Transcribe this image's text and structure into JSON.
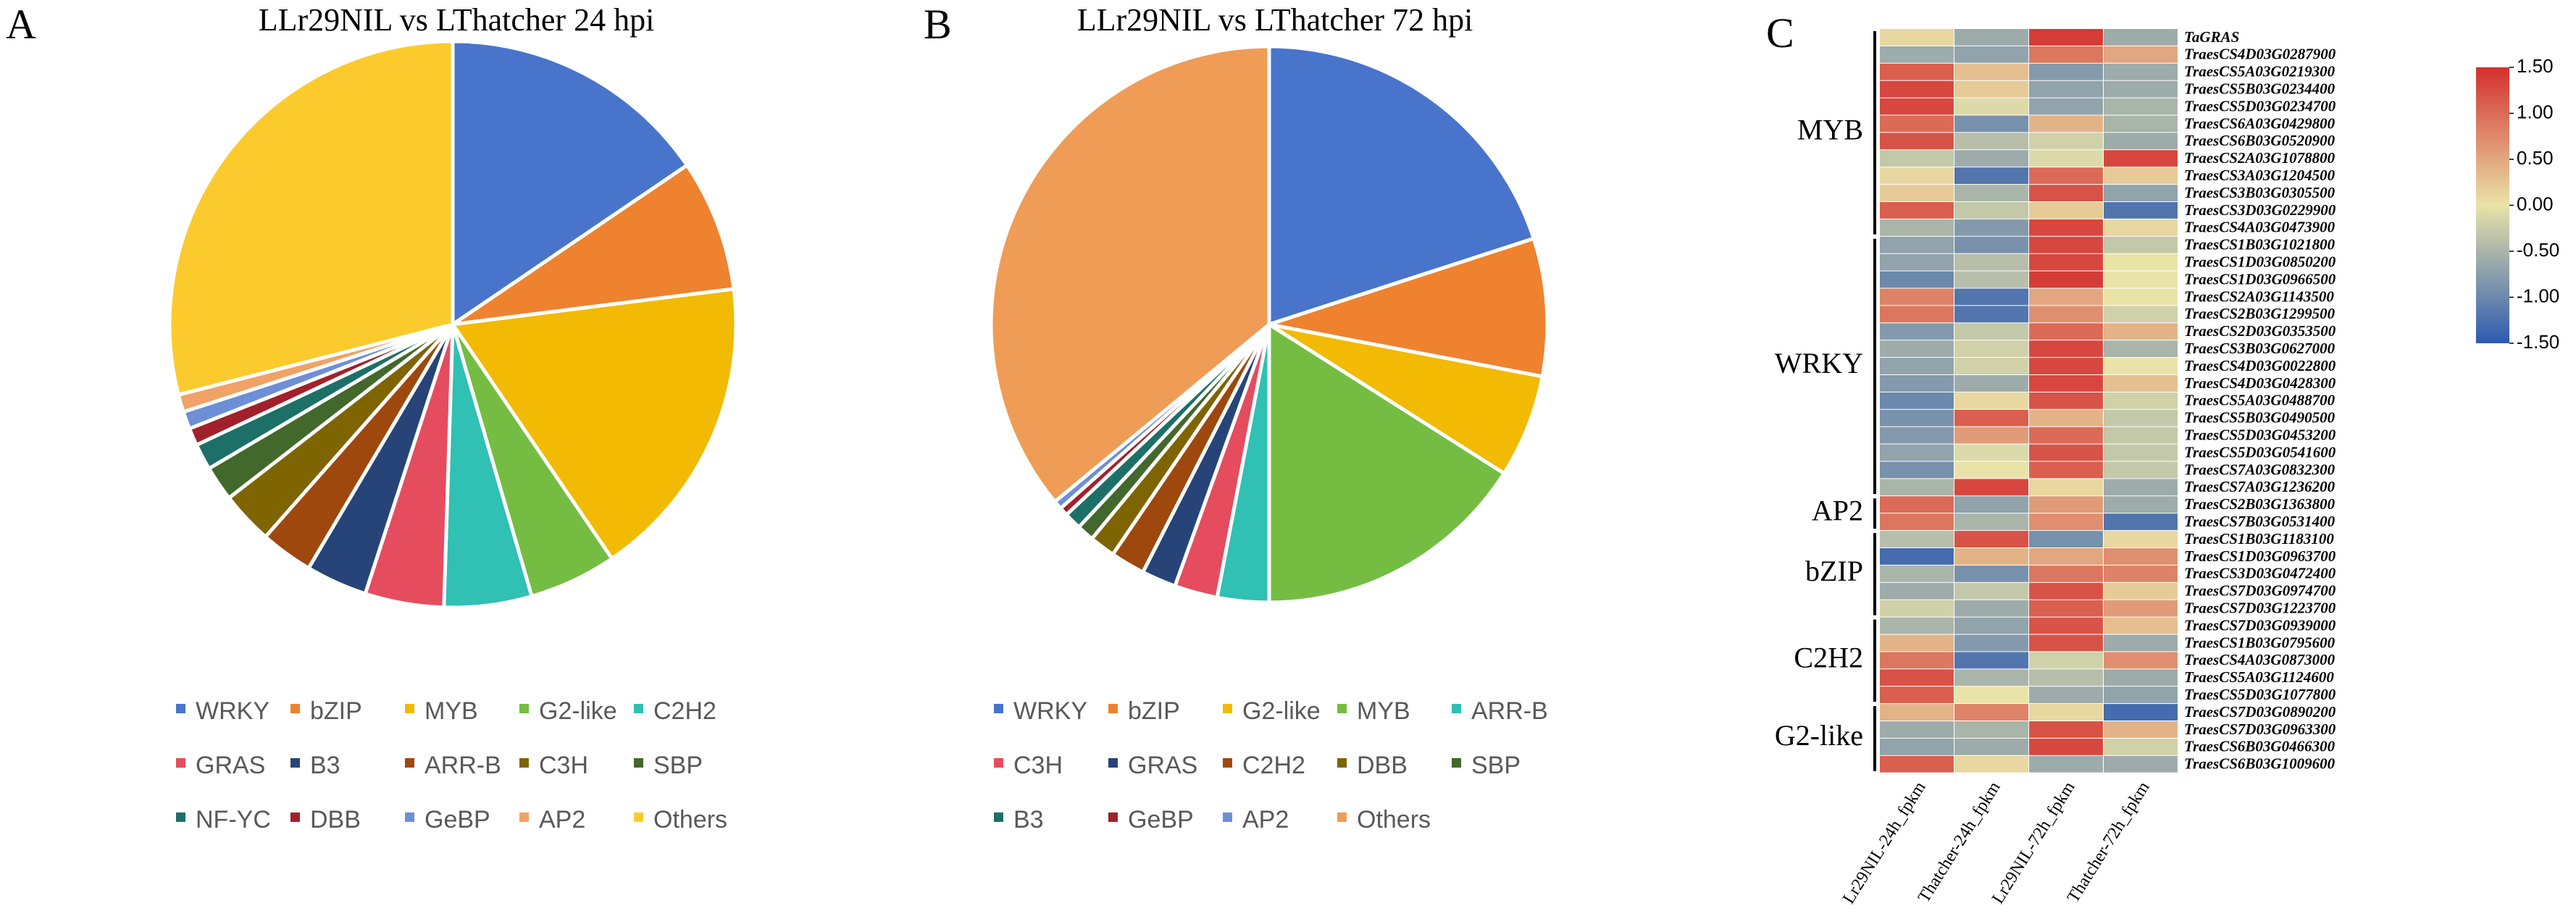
{
  "panels": {
    "a": {
      "letter": "A",
      "title": "LLr29NIL vs LThatcher 24 hpi"
    },
    "b": {
      "letter": "B",
      "title": "LLr29NIL vs LThatcher 72 hpi"
    },
    "c": {
      "letter": "C"
    }
  },
  "chart_data": [
    {
      "type": "pie",
      "title": "LLr29NIL vs LThatcher 24 hpi",
      "legend_position": "bottom",
      "slices": [
        {
          "label": "WRKY",
          "value": 15.5,
          "color": "#4874CB"
        },
        {
          "label": "bZIP",
          "value": 7.5,
          "color": "#EE822F"
        },
        {
          "label": "MYB",
          "value": 17.5,
          "color": "#F2BA02"
        },
        {
          "label": "G2-like",
          "value": 5.0,
          "color": "#75BD42"
        },
        {
          "label": "C2H2",
          "value": 5.0,
          "color": "#30C0B4"
        },
        {
          "label": "GRAS",
          "value": 4.5,
          "color": "#E54C5E"
        },
        {
          "label": "B3",
          "value": 3.5,
          "color": "#264478"
        },
        {
          "label": "ARR-B",
          "value": 3.0,
          "color": "#9E480E"
        },
        {
          "label": "C3H",
          "value": 3.0,
          "color": "#7E6502"
        },
        {
          "label": "SBP",
          "value": 2.0,
          "color": "#43682B"
        },
        {
          "label": "NF-YC",
          "value": 1.5,
          "color": "#1C7068"
        },
        {
          "label": "DBB",
          "value": 1.0,
          "color": "#A2202C"
        },
        {
          "label": "GeBP",
          "value": 1.0,
          "color": "#6D8FD7"
        },
        {
          "label": "AP2",
          "value": 1.0,
          "color": "#F1A265"
        },
        {
          "label": "Others",
          "value": 29.0,
          "color": "#FBCB2E"
        }
      ]
    },
    {
      "type": "pie",
      "title": "LLr29NIL vs LThatcher 72 hpi",
      "legend_position": "bottom",
      "slices": [
        {
          "label": "WRKY",
          "value": 20.0,
          "color": "#4874CB"
        },
        {
          "label": "bZIP",
          "value": 8.0,
          "color": "#EE822F"
        },
        {
          "label": "G2-like",
          "value": 6.0,
          "color": "#F2BA02"
        },
        {
          "label": "MYB",
          "value": 16.0,
          "color": "#75BD42"
        },
        {
          "label": "ARR-B",
          "value": 3.0,
          "color": "#30C0B4"
        },
        {
          "label": "C3H",
          "value": 2.5,
          "color": "#E54C5E"
        },
        {
          "label": "GRAS",
          "value": 2.0,
          "color": "#264478"
        },
        {
          "label": "C2H2",
          "value": 2.0,
          "color": "#9E480E"
        },
        {
          "label": "DBB",
          "value": 1.5,
          "color": "#7E6502"
        },
        {
          "label": "SBP",
          "value": 1.0,
          "color": "#43682B"
        },
        {
          "label": "B3",
          "value": 1.0,
          "color": "#1C7068"
        },
        {
          "label": "GeBP",
          "value": 0.5,
          "color": "#A2202C"
        },
        {
          "label": "AP2",
          "value": 0.5,
          "color": "#6D8FD7"
        },
        {
          "label": "Others",
          "value": 36.0,
          "color": "#EF9C57"
        }
      ]
    },
    {
      "type": "heatmap",
      "columns": [
        "Lr29NIL-24h_fpkm",
        "Thatcher-24h_fpkm",
        "Lr29NIL-72h_fpkm",
        "Thatcher-72h_fpkm"
      ],
      "colorbar": {
        "min": -1.5,
        "max": 1.5,
        "ticks": [
          "1.50",
          "1.00",
          "0.50",
          "0.00",
          "-0.50",
          "-1.00",
          "-1.50"
        ],
        "colors": [
          "#2C5AAF",
          "#E9E3A8",
          "#D42F2F"
        ]
      },
      "rows": [
        {
          "gene": "TaGRAS",
          "values": [
            0.1,
            -0.6,
            1.4,
            -0.6
          ]
        },
        {
          "gene": "TraesCS4D03G0287900",
          "values": [
            -0.6,
            -0.7,
            0.9,
            0.5
          ]
        },
        {
          "gene": "TraesCS5A03G0219300",
          "values": [
            1.1,
            0.3,
            -0.8,
            -0.6
          ]
        },
        {
          "gene": "TraesCS5B03G0234400",
          "values": [
            1.3,
            0.2,
            -0.7,
            -0.6
          ]
        },
        {
          "gene": "TraesCS5D03G0234700",
          "values": [
            1.3,
            -0.1,
            -0.7,
            -0.5
          ]
        },
        {
          "gene": "TraesCS6A03G0429800",
          "values": [
            1.0,
            -0.9,
            0.4,
            -0.5
          ]
        },
        {
          "gene": "TraesCS6B03G0520900",
          "values": [
            1.2,
            -0.4,
            -0.2,
            -0.6
          ]
        },
        {
          "gene": "TraesCS2A03G1078800",
          "values": [
            -0.3,
            -0.6,
            -0.1,
            1.3
          ]
        },
        {
          "gene": "TraesCS3A03G1204500",
          "values": [
            0.1,
            -1.2,
            1.0,
            0.2
          ]
        },
        {
          "gene": "TraesCS3B03G0305500",
          "values": [
            0.2,
            -0.5,
            1.2,
            -0.7
          ]
        },
        {
          "gene": "TraesCS3D03G0229900",
          "values": [
            1.1,
            -0.3,
            0.2,
            -1.2
          ]
        },
        {
          "gene": "TraesCS4A03G0473900",
          "values": [
            -0.5,
            -0.8,
            1.3,
            0.1
          ]
        },
        {
          "gene": "TraesCS1B03G1021800",
          "values": [
            -0.7,
            -0.9,
            1.3,
            -0.3
          ]
        },
        {
          "gene": "TraesCS1D03G0850200",
          "values": [
            -0.7,
            -0.4,
            1.3,
            0.0
          ]
        },
        {
          "gene": "TraesCS1D03G0966500",
          "values": [
            -1.0,
            -0.4,
            1.4,
            0.0
          ]
        },
        {
          "gene": "TraesCS2A03G1143500",
          "values": [
            0.8,
            -1.2,
            0.5,
            0.0
          ]
        },
        {
          "gene": "TraesCS2B03G1299500",
          "values": [
            0.9,
            -1.2,
            0.7,
            -0.2
          ]
        },
        {
          "gene": "TraesCS2D03G0353500",
          "values": [
            -0.8,
            -0.3,
            1.0,
            0.4
          ]
        },
        {
          "gene": "TraesCS3B03G0627000",
          "values": [
            -0.6,
            -0.2,
            1.3,
            -0.5
          ]
        },
        {
          "gene": "TraesCS4D03G0022800",
          "values": [
            -0.7,
            -0.2,
            1.3,
            0.0
          ]
        },
        {
          "gene": "TraesCS4D03G0428300",
          "values": [
            -0.8,
            -0.6,
            1.3,
            0.3
          ]
        },
        {
          "gene": "TraesCS5A03G0488700",
          "values": [
            -1.0,
            0.1,
            1.2,
            -0.2
          ]
        },
        {
          "gene": "TraesCS5B03G0490500",
          "values": [
            -0.9,
            1.1,
            0.4,
            -0.3
          ]
        },
        {
          "gene": "TraesCS5D03G0453200",
          "values": [
            -0.8,
            0.6,
            1.0,
            -0.3
          ]
        },
        {
          "gene": "TraesCS5D03G0541600",
          "values": [
            -0.7,
            -0.1,
            1.2,
            -0.3
          ]
        },
        {
          "gene": "TraesCS7A03G0832300",
          "values": [
            -0.9,
            0.0,
            1.1,
            -0.3
          ]
        },
        {
          "gene": "TraesCS7A03G1236200",
          "values": [
            -0.5,
            1.3,
            0.1,
            -0.6
          ]
        },
        {
          "gene": "TraesCS2B03G1363800",
          "values": [
            1.0,
            -0.7,
            0.6,
            -0.6
          ]
        },
        {
          "gene": "TraesCS7B03G0531400",
          "values": [
            0.9,
            -0.5,
            0.7,
            -1.2
          ]
        },
        {
          "gene": "TraesCS1B03G1183100",
          "values": [
            -0.4,
            1.2,
            -0.9,
            0.1
          ]
        },
        {
          "gene": "TraesCS1D03G0963700",
          "values": [
            -1.3,
            0.4,
            0.5,
            0.7
          ]
        },
        {
          "gene": "TraesCS3D03G0472400",
          "values": [
            -0.5,
            -0.9,
            0.9,
            0.8
          ]
        },
        {
          "gene": "TraesCS7D03G0974700",
          "values": [
            -0.6,
            -0.3,
            1.2,
            0.2
          ]
        },
        {
          "gene": "TraesCS7D03G1223700",
          "values": [
            -0.2,
            -0.6,
            1.1,
            0.6
          ]
        },
        {
          "gene": "TraesCS7D03G0939000",
          "values": [
            -0.5,
            -0.7,
            1.2,
            0.3
          ]
        },
        {
          "gene": "TraesCS1B03G0795600",
          "values": [
            0.4,
            -0.8,
            1.2,
            -0.6
          ]
        },
        {
          "gene": "TraesCS4A03G0873000",
          "values": [
            0.9,
            -1.2,
            -0.2,
            0.7
          ]
        },
        {
          "gene": "TraesCS5A03G1124600",
          "values": [
            1.2,
            -0.5,
            -0.4,
            -0.6
          ]
        },
        {
          "gene": "TraesCS5D03G1077800",
          "values": [
            1.1,
            0.0,
            -0.6,
            -0.7
          ]
        },
        {
          "gene": "TraesCS7D03G0890200",
          "values": [
            0.4,
            0.8,
            0.1,
            -1.3
          ]
        },
        {
          "gene": "TraesCS7D03G0963300",
          "values": [
            -0.6,
            -0.5,
            1.2,
            0.4
          ]
        },
        {
          "gene": "TraesCS6B03G0466300",
          "values": [
            -0.7,
            -0.6,
            1.3,
            -0.2
          ]
        },
        {
          "gene": "TraesCS6B03G1009600",
          "values": [
            1.1,
            0.1,
            -0.6,
            -0.6
          ]
        }
      ],
      "groups": [
        {
          "label": "MYB",
          "start": 0,
          "end": 12
        },
        {
          "label": "WRKY",
          "start": 12,
          "end": 27
        },
        {
          "label": "AP2",
          "start": 27,
          "end": 29
        },
        {
          "label": "bZIP",
          "start": 29,
          "end": 34
        },
        {
          "label": "C2H2",
          "start": 34,
          "end": 39
        },
        {
          "label": "G2-like",
          "start": 39,
          "end": 43
        }
      ]
    }
  ]
}
